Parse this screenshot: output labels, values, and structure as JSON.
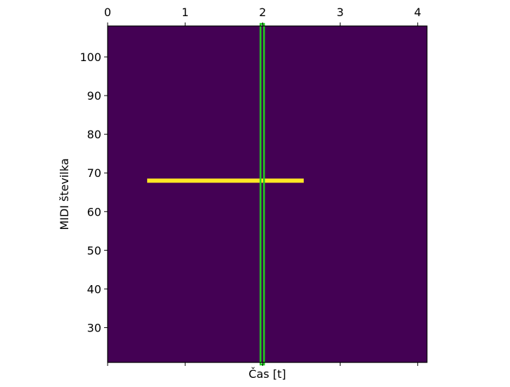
{
  "chart_data": {
    "type": "heatmap",
    "title": "",
    "xlabel": "Čas [t]",
    "ylabel": "MIDI številka",
    "xlim": [
      0,
      4.12
    ],
    "ylim": [
      21,
      108
    ],
    "x_ticks": [
      0,
      1,
      2,
      3,
      4
    ],
    "x_tick_labels": [
      "0",
      "1",
      "2",
      "3",
      "4"
    ],
    "x_tick_position": "top",
    "y_ticks": [
      30,
      40,
      50,
      60,
      70,
      80,
      90,
      100
    ],
    "y_tick_labels": [
      "30",
      "40",
      "50",
      "60",
      "70",
      "80",
      "90",
      "100"
    ],
    "grid": false,
    "background_color": "#440154",
    "notes": [
      {
        "midi": 68,
        "start": 0.51,
        "end": 2.53,
        "color": "#fde725"
      }
    ],
    "cursor": {
      "x": 1.995,
      "color": "#22cc22",
      "style": "outlined-rectangle"
    }
  }
}
